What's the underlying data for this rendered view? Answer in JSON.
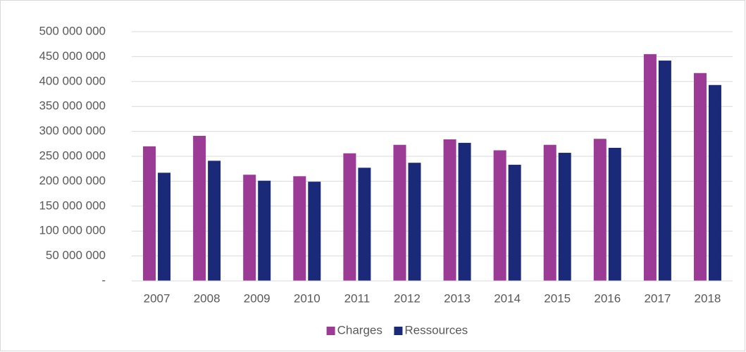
{
  "chart_data": {
    "type": "bar",
    "categories": [
      "2007",
      "2008",
      "2009",
      "2010",
      "2011",
      "2012",
      "2013",
      "2014",
      "2015",
      "2016",
      "2017",
      "2018"
    ],
    "series": [
      {
        "name": "Charges",
        "color": "#9b3b96",
        "values": [
          270000000,
          291000000,
          213000000,
          210000000,
          256000000,
          273000000,
          284000000,
          262000000,
          273000000,
          285000000,
          455000000,
          417000000
        ]
      },
      {
        "name": "Ressources",
        "color": "#1b2a78",
        "values": [
          217000000,
          241000000,
          201000000,
          199000000,
          227000000,
          237000000,
          277000000,
          233000000,
          257000000,
          267000000,
          442000000,
          393000000
        ]
      }
    ],
    "ylim": [
      0,
      500000000
    ],
    "yticks": [
      {
        "value": 0,
        "label": "-"
      },
      {
        "value": 50000000,
        "label": "50 000 000"
      },
      {
        "value": 100000000,
        "label": "100 000 000"
      },
      {
        "value": 150000000,
        "label": "150 000 000"
      },
      {
        "value": 200000000,
        "label": "200 000 000"
      },
      {
        "value": 250000000,
        "label": "250 000 000"
      },
      {
        "value": 300000000,
        "label": "300 000 000"
      },
      {
        "value": 350000000,
        "label": "350 000 000"
      },
      {
        "value": 400000000,
        "label": "400 000 000"
      },
      {
        "value": 450000000,
        "label": "450 000 000"
      },
      {
        "value": 500000000,
        "label": "500 000 000"
      }
    ],
    "grid": true,
    "legend": "bottom"
  }
}
